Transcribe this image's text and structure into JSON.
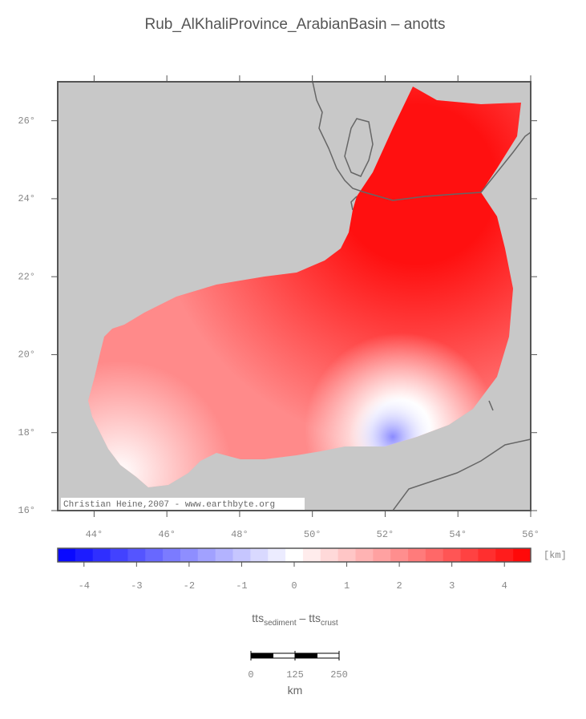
{
  "title": "Rub_AlKhaliProvince_ArabianBasin – anotts",
  "map": {
    "xlim": [
      43,
      56
    ],
    "ylim": [
      16,
      27
    ],
    "xticks": [
      {
        "value": 44,
        "label": "44°"
      },
      {
        "value": 46,
        "label": "46°"
      },
      {
        "value": 48,
        "label": "48°"
      },
      {
        "value": 50,
        "label": "50°"
      },
      {
        "value": 52,
        "label": "52°"
      },
      {
        "value": 54,
        "label": "54°"
      },
      {
        "value": 56,
        "label": "56°"
      }
    ],
    "yticks": [
      {
        "value": 16,
        "label": "16°"
      },
      {
        "value": 18,
        "label": "18°"
      },
      {
        "value": 20,
        "label": "20°"
      },
      {
        "value": 22,
        "label": "22°"
      },
      {
        "value": 24,
        "label": "24°"
      },
      {
        "value": 26,
        "label": "26°"
      }
    ],
    "credit": "Christian Heine,2007 - www.earthbyte.org"
  },
  "colorbar": {
    "lim": [
      -4.5,
      4.5
    ],
    "ticks": [
      -4,
      -3,
      -2,
      -1,
      0,
      1,
      2,
      3,
      4
    ],
    "unit": "[km]",
    "colors": [
      "#0000ff",
      "#ffffff",
      "#ff0000"
    ],
    "label": {
      "main1": "tts",
      "sub1": "sediment",
      "main2": " – tts",
      "sub2": "crust"
    }
  },
  "scalebar": {
    "ticks": [
      0,
      125,
      250
    ],
    "unit": "km"
  }
}
